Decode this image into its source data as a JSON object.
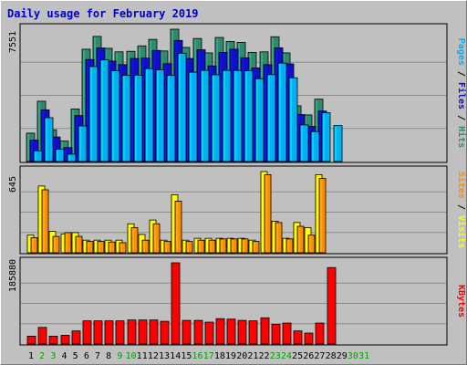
{
  "chart_data": {
    "type": "bar",
    "title": "Daily usage for February 2019",
    "days": [
      "1",
      "2",
      "3",
      "4",
      "5",
      "6",
      "7",
      "8",
      "9",
      "10",
      "11",
      "12",
      "13",
      "14",
      "15",
      "16",
      "17",
      "18",
      "19",
      "20",
      "21",
      "22",
      "23",
      "24",
      "25",
      "26",
      "27",
      "28",
      "29",
      "30",
      "31"
    ],
    "weekend_days": [
      "2",
      "3",
      "9",
      "10",
      "16",
      "17",
      "23",
      "24",
      "30",
      "31"
    ],
    "panels": [
      {
        "id": "hits",
        "max_label": "7551",
        "ymax": 7551,
        "series": [
          {
            "name": "Hits",
            "color": "#2e8b6e",
            "values": [
              1620,
              3440,
              1810,
              1170,
              3000,
              6410,
              7140,
              6460,
              6260,
              6290,
              6600,
              6970,
              6310,
              7551,
              6510,
              7020,
              6200,
              7080,
              6850,
              6800,
              6230,
              6260,
              7120,
              6200,
              3180,
              2660,
              3560,
              0,
              0,
              0,
              0
            ]
          },
          {
            "name": "Files",
            "color": "#1010cc",
            "values": [
              1220,
              2950,
              1400,
              790,
              2620,
              5820,
              6480,
              5730,
              5530,
              5880,
              5900,
              6340,
              5580,
              6910,
              5880,
              6380,
              5460,
              6230,
              6410,
              5920,
              5340,
              5530,
              6490,
              5570,
              2680,
              2000,
              2880,
              0,
              0,
              0,
              0
            ]
          },
          {
            "name": "Pages",
            "color": "#00b0f0",
            "values": [
              610,
              2500,
              700,
              420,
              2030,
              5420,
              5800,
              5180,
              4920,
              4930,
              5300,
              5230,
              4920,
              6180,
              5100,
              5200,
              4950,
              5200,
              5200,
              5180,
              4730,
              4960,
              5620,
              4780,
              2090,
              1710,
              2780,
              2050,
              0,
              0,
              0
            ]
          }
        ],
        "legend": [
          "Pages",
          "Files",
          "Hits"
        ]
      },
      {
        "id": "visits",
        "max_label": "645",
        "ymax": 645,
        "series": [
          {
            "name": "Visits",
            "color": "#ffff00",
            "values": [
              140,
              530,
              170,
              150,
              160,
              100,
              100,
              100,
              100,
              230,
              145,
              260,
              100,
              460,
              100,
              115,
              115,
              115,
              115,
              115,
              100,
              645,
              250,
              115,
              240,
              200,
              620,
              0,
              0,
              0,
              0
            ]
          },
          {
            "name": "Sites",
            "color": "#ff8c00",
            "values": [
              120,
              500,
              130,
              160,
              130,
              90,
              90,
              85,
              80,
              200,
              100,
              230,
              90,
              410,
              90,
              100,
              100,
              110,
              110,
              110,
              90,
              620,
              240,
              110,
              210,
              140,
              590,
              0,
              0,
              0,
              0
            ]
          }
        ],
        "legend": [
          "Sites",
          "Visits"
        ]
      },
      {
        "id": "kbytes",
        "max_label": "185880",
        "ymax": 185880,
        "series": [
          {
            "name": "KBytes",
            "color": "#ff0000",
            "values": [
              18000,
              38000,
              18000,
              20000,
              30000,
              53000,
              53000,
              53000,
              53000,
              55000,
              55000,
              55000,
              52000,
              185880,
              54000,
              54000,
              50000,
              58000,
              57000,
              54000,
              53000,
              60000,
              45000,
              48000,
              30000,
              25000,
              48000,
              175000,
              0,
              0,
              0
            ]
          }
        ],
        "legend": [
          "KBytes"
        ]
      }
    ]
  }
}
